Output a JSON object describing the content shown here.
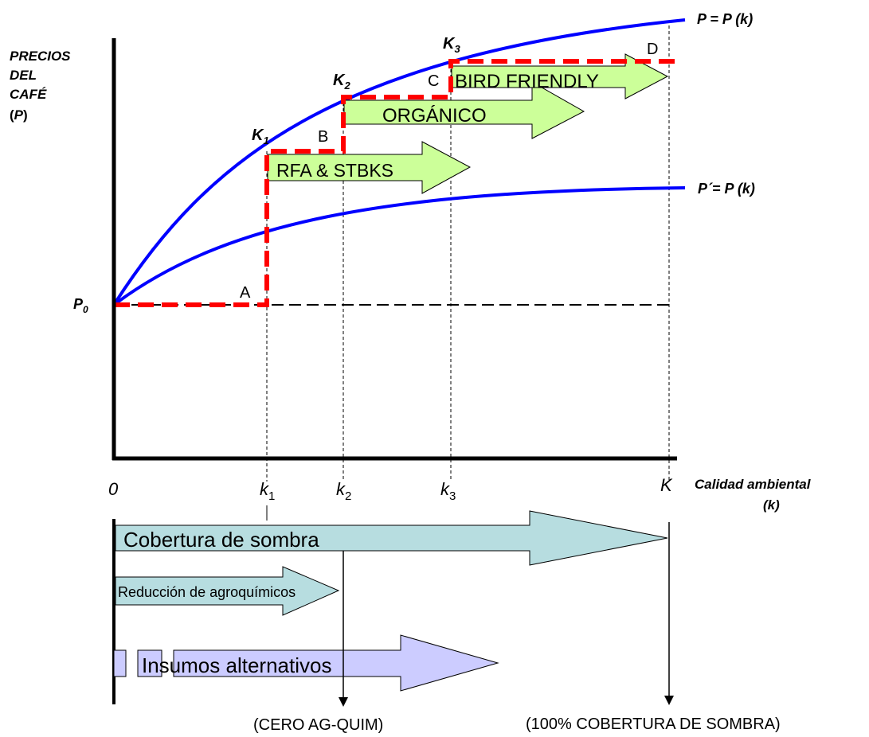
{
  "y_axis_label": {
    "line1": "PRECIOS",
    "line2": "DEL",
    "line3": "CAFÉ",
    "paren_open": "(",
    "symbol": "P",
    "paren_close": ")"
  },
  "p0_label": {
    "base": "P",
    "sub": "0"
  },
  "curves": {
    "upper": {
      "label": "P = P (k)"
    },
    "lower": {
      "label": "P´= P (k)"
    }
  },
  "curve_points": {
    "k1": {
      "base": "K",
      "sub": "1"
    },
    "k2": {
      "base": "K",
      "sub": "2"
    },
    "k3": {
      "base": "K",
      "sub": "3"
    }
  },
  "step_letters": {
    "a": "A",
    "b": "B",
    "c": "C",
    "d": "D"
  },
  "certifications": {
    "rfa": "RFA & STBKS",
    "organico": "ORGÁNICO",
    "bird_friendly": "BIRD FRIENDLY"
  },
  "x_axis": {
    "origin": "0",
    "ticks": [
      {
        "base": "k",
        "sub": "1"
      },
      {
        "base": "k",
        "sub": "2"
      },
      {
        "base": "k",
        "sub": "3"
      }
    ],
    "max": "K",
    "label_line1": "Calidad ambiental",
    "label_line2": "(k)"
  },
  "practices": {
    "sombra": "Cobertura de sombra",
    "agroquimicos": "Reducción de agroquímicos",
    "insumos": "Insumos alternativos"
  },
  "outcomes": {
    "cero_agquim": "(CERO  AG-QUIM)",
    "sombra_total": "(100% COBERTURA DE SOMBRA)"
  },
  "colors": {
    "curve": "#0000ff",
    "step_path": "#ff0000",
    "cert_arrow": "#ccff99",
    "practice_arrow": "#b7dde0",
    "insumos_arrow": "#ccccff"
  }
}
